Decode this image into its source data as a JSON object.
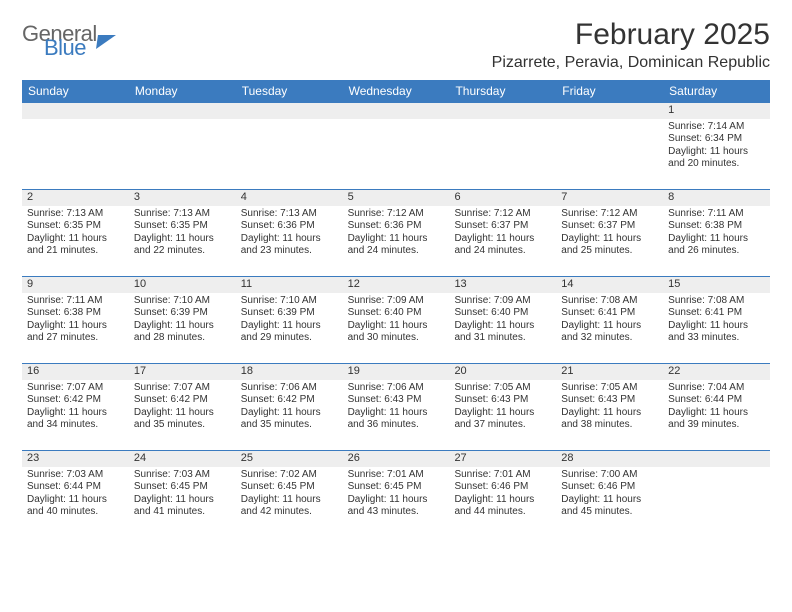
{
  "logo": {
    "line1": "General",
    "line2": "Blue"
  },
  "header": {
    "month_title": "February 2025",
    "location": "Pizarrete, Peravia, Dominican Republic"
  },
  "styling": {
    "header_bar_color": "#3b7bbf",
    "header_text_color": "#ffffff",
    "row_divider_color": "#3b7bbf",
    "daynum_bg": "#eeeeee",
    "body_text_color": "#333333",
    "month_title_fontsize": 30,
    "location_fontsize": 16,
    "weekday_fontsize": 12,
    "cell_fontsize": 10
  },
  "weekdays": [
    "Sunday",
    "Monday",
    "Tuesday",
    "Wednesday",
    "Thursday",
    "Friday",
    "Saturday"
  ],
  "weeks": [
    [
      null,
      null,
      null,
      null,
      null,
      null,
      {
        "n": "1",
        "sr": "Sunrise: 7:14 AM",
        "ss": "Sunset: 6:34 PM",
        "d1": "Daylight: 11 hours",
        "d2": "and 20 minutes."
      }
    ],
    [
      {
        "n": "2",
        "sr": "Sunrise: 7:13 AM",
        "ss": "Sunset: 6:35 PM",
        "d1": "Daylight: 11 hours",
        "d2": "and 21 minutes."
      },
      {
        "n": "3",
        "sr": "Sunrise: 7:13 AM",
        "ss": "Sunset: 6:35 PM",
        "d1": "Daylight: 11 hours",
        "d2": "and 22 minutes."
      },
      {
        "n": "4",
        "sr": "Sunrise: 7:13 AM",
        "ss": "Sunset: 6:36 PM",
        "d1": "Daylight: 11 hours",
        "d2": "and 23 minutes."
      },
      {
        "n": "5",
        "sr": "Sunrise: 7:12 AM",
        "ss": "Sunset: 6:36 PM",
        "d1": "Daylight: 11 hours",
        "d2": "and 24 minutes."
      },
      {
        "n": "6",
        "sr": "Sunrise: 7:12 AM",
        "ss": "Sunset: 6:37 PM",
        "d1": "Daylight: 11 hours",
        "d2": "and 24 minutes."
      },
      {
        "n": "7",
        "sr": "Sunrise: 7:12 AM",
        "ss": "Sunset: 6:37 PM",
        "d1": "Daylight: 11 hours",
        "d2": "and 25 minutes."
      },
      {
        "n": "8",
        "sr": "Sunrise: 7:11 AM",
        "ss": "Sunset: 6:38 PM",
        "d1": "Daylight: 11 hours",
        "d2": "and 26 minutes."
      }
    ],
    [
      {
        "n": "9",
        "sr": "Sunrise: 7:11 AM",
        "ss": "Sunset: 6:38 PM",
        "d1": "Daylight: 11 hours",
        "d2": "and 27 minutes."
      },
      {
        "n": "10",
        "sr": "Sunrise: 7:10 AM",
        "ss": "Sunset: 6:39 PM",
        "d1": "Daylight: 11 hours",
        "d2": "and 28 minutes."
      },
      {
        "n": "11",
        "sr": "Sunrise: 7:10 AM",
        "ss": "Sunset: 6:39 PM",
        "d1": "Daylight: 11 hours",
        "d2": "and 29 minutes."
      },
      {
        "n": "12",
        "sr": "Sunrise: 7:09 AM",
        "ss": "Sunset: 6:40 PM",
        "d1": "Daylight: 11 hours",
        "d2": "and 30 minutes."
      },
      {
        "n": "13",
        "sr": "Sunrise: 7:09 AM",
        "ss": "Sunset: 6:40 PM",
        "d1": "Daylight: 11 hours",
        "d2": "and 31 minutes."
      },
      {
        "n": "14",
        "sr": "Sunrise: 7:08 AM",
        "ss": "Sunset: 6:41 PM",
        "d1": "Daylight: 11 hours",
        "d2": "and 32 minutes."
      },
      {
        "n": "15",
        "sr": "Sunrise: 7:08 AM",
        "ss": "Sunset: 6:41 PM",
        "d1": "Daylight: 11 hours",
        "d2": "and 33 minutes."
      }
    ],
    [
      {
        "n": "16",
        "sr": "Sunrise: 7:07 AM",
        "ss": "Sunset: 6:42 PM",
        "d1": "Daylight: 11 hours",
        "d2": "and 34 minutes."
      },
      {
        "n": "17",
        "sr": "Sunrise: 7:07 AM",
        "ss": "Sunset: 6:42 PM",
        "d1": "Daylight: 11 hours",
        "d2": "and 35 minutes."
      },
      {
        "n": "18",
        "sr": "Sunrise: 7:06 AM",
        "ss": "Sunset: 6:42 PM",
        "d1": "Daylight: 11 hours",
        "d2": "and 35 minutes."
      },
      {
        "n": "19",
        "sr": "Sunrise: 7:06 AM",
        "ss": "Sunset: 6:43 PM",
        "d1": "Daylight: 11 hours",
        "d2": "and 36 minutes."
      },
      {
        "n": "20",
        "sr": "Sunrise: 7:05 AM",
        "ss": "Sunset: 6:43 PM",
        "d1": "Daylight: 11 hours",
        "d2": "and 37 minutes."
      },
      {
        "n": "21",
        "sr": "Sunrise: 7:05 AM",
        "ss": "Sunset: 6:43 PM",
        "d1": "Daylight: 11 hours",
        "d2": "and 38 minutes."
      },
      {
        "n": "22",
        "sr": "Sunrise: 7:04 AM",
        "ss": "Sunset: 6:44 PM",
        "d1": "Daylight: 11 hours",
        "d2": "and 39 minutes."
      }
    ],
    [
      {
        "n": "23",
        "sr": "Sunrise: 7:03 AM",
        "ss": "Sunset: 6:44 PM",
        "d1": "Daylight: 11 hours",
        "d2": "and 40 minutes."
      },
      {
        "n": "24",
        "sr": "Sunrise: 7:03 AM",
        "ss": "Sunset: 6:45 PM",
        "d1": "Daylight: 11 hours",
        "d2": "and 41 minutes."
      },
      {
        "n": "25",
        "sr": "Sunrise: 7:02 AM",
        "ss": "Sunset: 6:45 PM",
        "d1": "Daylight: 11 hours",
        "d2": "and 42 minutes."
      },
      {
        "n": "26",
        "sr": "Sunrise: 7:01 AM",
        "ss": "Sunset: 6:45 PM",
        "d1": "Daylight: 11 hours",
        "d2": "and 43 minutes."
      },
      {
        "n": "27",
        "sr": "Sunrise: 7:01 AM",
        "ss": "Sunset: 6:46 PM",
        "d1": "Daylight: 11 hours",
        "d2": "and 44 minutes."
      },
      {
        "n": "28",
        "sr": "Sunrise: 7:00 AM",
        "ss": "Sunset: 6:46 PM",
        "d1": "Daylight: 11 hours",
        "d2": "and 45 minutes."
      },
      null
    ]
  ]
}
